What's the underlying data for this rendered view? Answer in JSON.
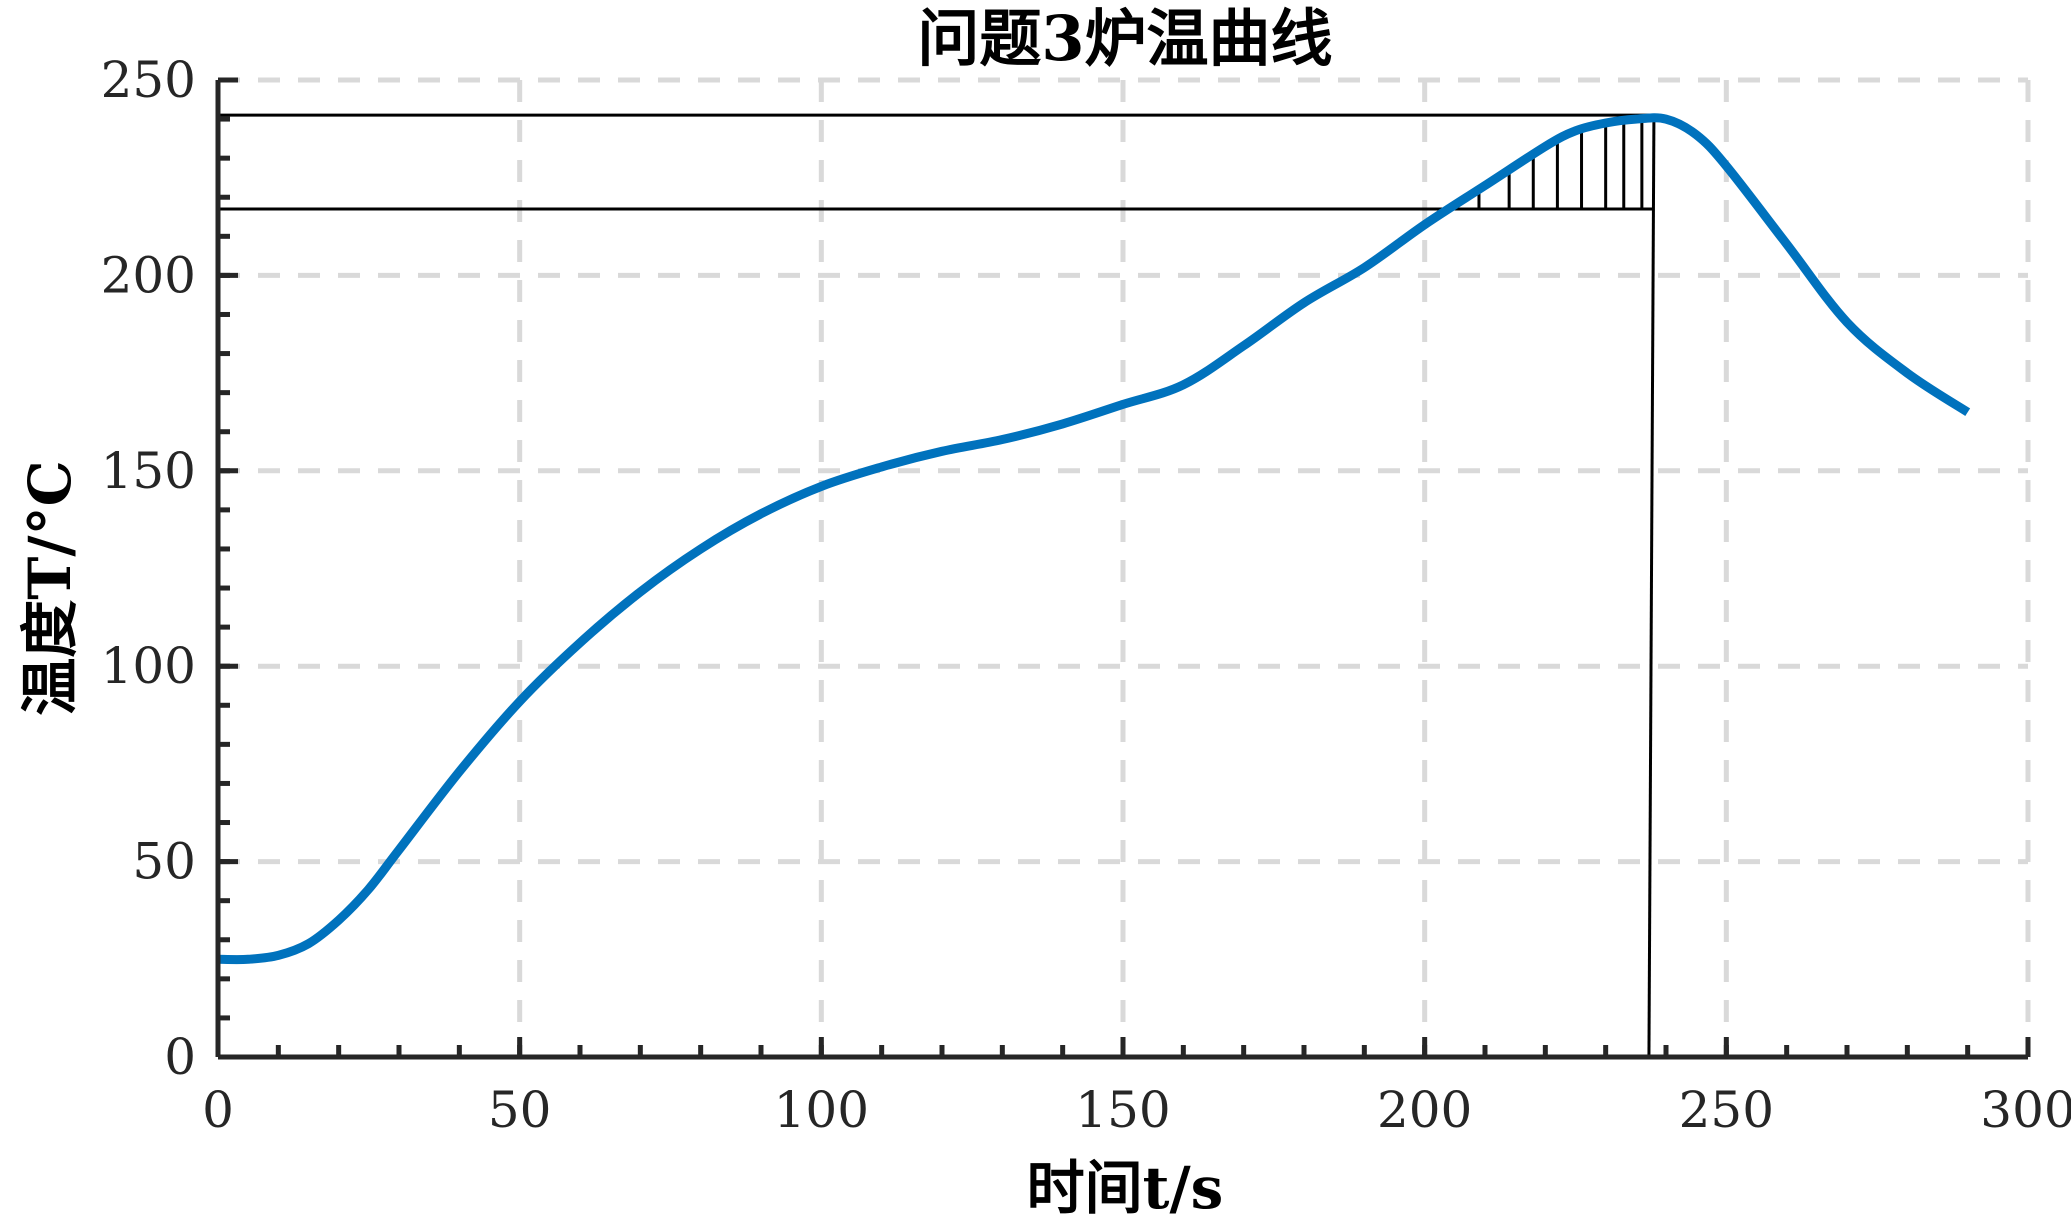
{
  "chart_data": {
    "type": "line",
    "title": "问题3炉温曲线",
    "xlabel": "时间t/s",
    "ylabel": "温度T/°C",
    "xlim": [
      0,
      300
    ],
    "ylim": [
      0,
      250
    ],
    "xticks": [
      0,
      50,
      100,
      150,
      200,
      250,
      300
    ],
    "yticks": [
      0,
      50,
      100,
      150,
      200,
      250
    ],
    "xtick_labels": [
      "0",
      "50",
      "100",
      "150",
      "200",
      "250",
      "300"
    ],
    "ytick_labels": [
      "0",
      "50",
      "100",
      "150",
      "200",
      "250"
    ],
    "grid": true,
    "series_color": "#0072BD",
    "series": [
      {
        "x": [
          0,
          5,
          10,
          15,
          20,
          25,
          30,
          40,
          50,
          60,
          70,
          80,
          90,
          100,
          110,
          120,
          130,
          140,
          150,
          160,
          170,
          180,
          190,
          200,
          210,
          220,
          225,
          230,
          235,
          240,
          245,
          250,
          260,
          270,
          280,
          290
        ],
        "y": [
          25,
          25,
          26,
          29,
          35,
          43,
          53,
          73,
          91,
          106,
          119,
          130,
          139,
          146,
          151,
          155,
          158,
          162,
          167,
          172,
          182,
          193,
          202,
          213,
          223,
          233,
          237,
          239,
          240,
          240,
          236,
          228,
          208,
          188,
          175,
          165
        ]
      }
    ],
    "reference_lines": {
      "upper_y": 241,
      "lower_y": 217,
      "vertical_x": 238,
      "hatch_x": [
        209,
        214,
        218,
        222,
        226,
        230,
        233,
        236
      ]
    }
  }
}
